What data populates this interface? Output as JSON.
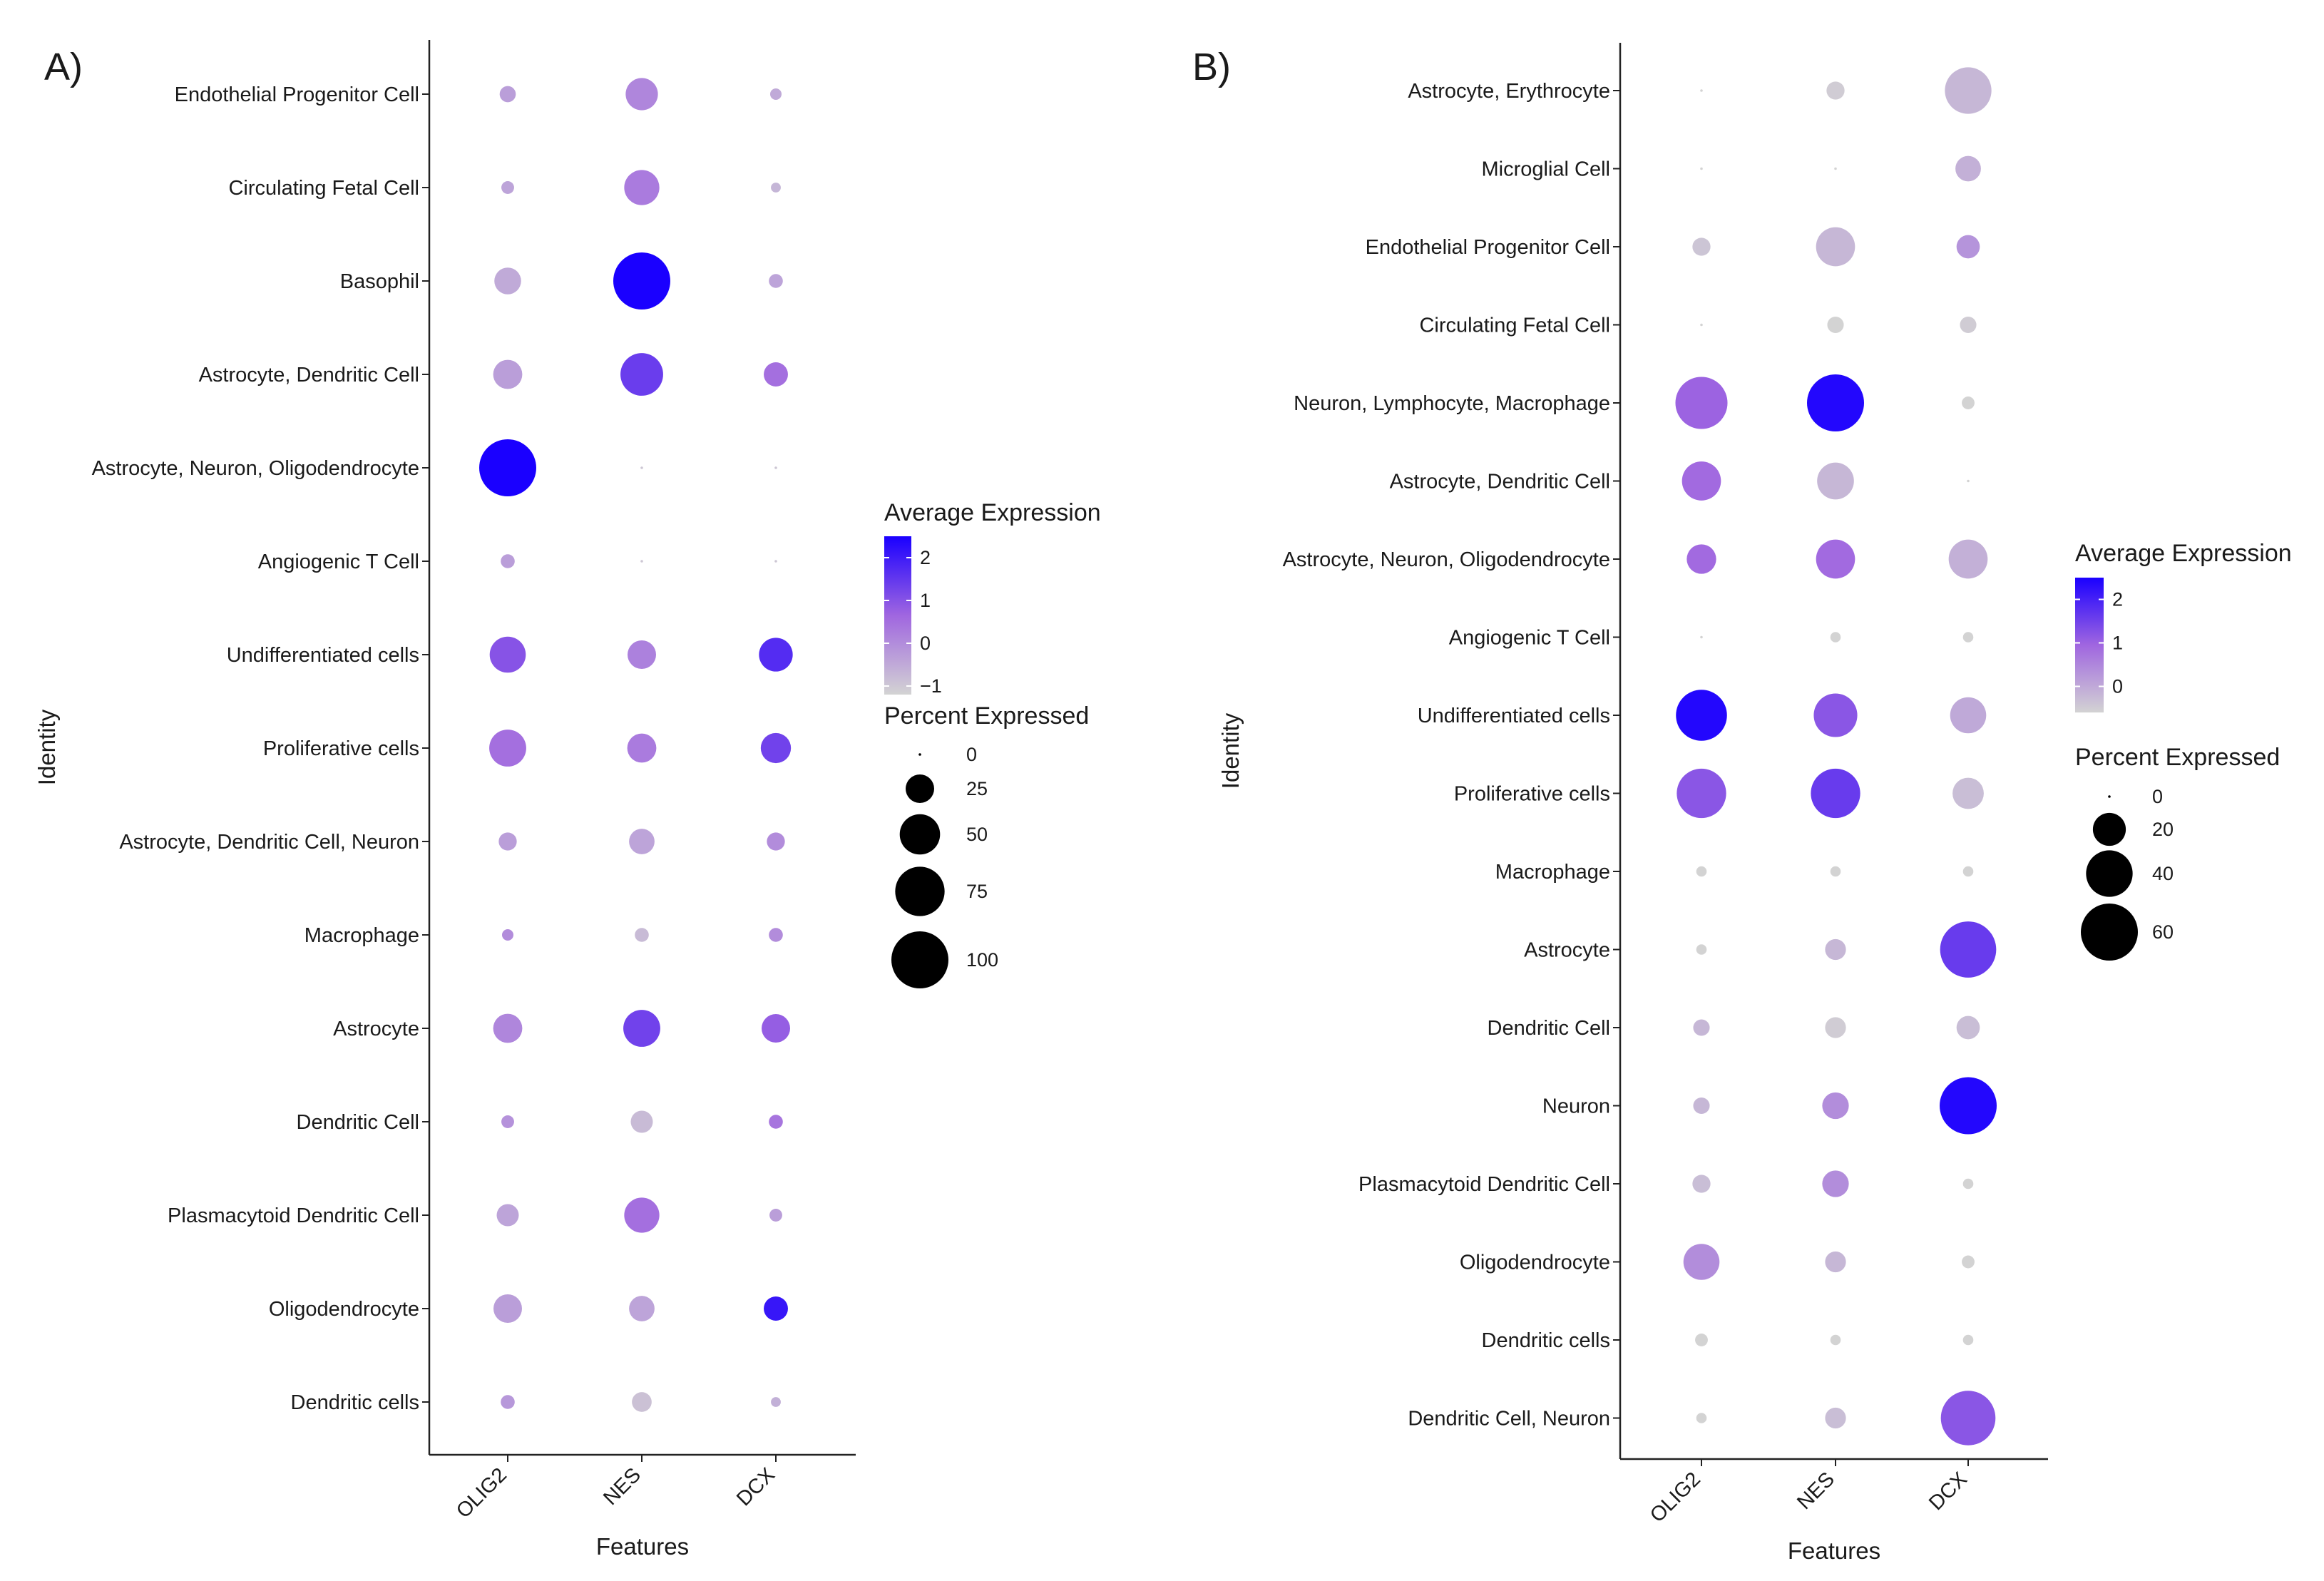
{
  "figure": {
    "panels": [
      {
        "letter": "A)"
      },
      {
        "letter": "B)"
      }
    ]
  },
  "chart_data": [
    {
      "type": "scatter",
      "subtype": "dot_plot",
      "panel": "A)",
      "xlabel": "Features",
      "ylabel": "Identity",
      "features": [
        "OLIG2",
        "NES",
        "DCX"
      ],
      "identities": [
        "Endothelial Progenitor Cell",
        "Circulating Fetal Cell",
        "Basophil",
        "Astrocyte, Dendritic Cell",
        "Astrocyte, Neuron, Oligodendrocyte",
        "Angiogenic T Cell",
        "Undifferentiated cells",
        "Proliferative cells",
        "Astrocyte, Dendritic Cell, Neuron",
        "Macrophage",
        "Astrocyte",
        "Dendritic Cell",
        "Plasmacytoid Dendritic Cell",
        "Oligodendrocyte",
        "Dendritic cells"
      ],
      "percent_expressed": [
        [
          8,
          32,
          4
        ],
        [
          5,
          38,
          3
        ],
        [
          22,
          100,
          6
        ],
        [
          26,
          56,
          18
        ],
        [
          100,
          0,
          0
        ],
        [
          6,
          0,
          0
        ],
        [
          40,
          25,
          35
        ],
        [
          42,
          26,
          28
        ],
        [
          10,
          20,
          10
        ],
        [
          4,
          6,
          6
        ],
        [
          26,
          42,
          25
        ],
        [
          5,
          15,
          6
        ],
        [
          15,
          38,
          5
        ],
        [
          25,
          20,
          18
        ],
        [
          6,
          12,
          3
        ]
      ],
      "average_expression": [
        [
          -0.3,
          0.1,
          -0.5
        ],
        [
          -0.4,
          0.3,
          -0.7
        ],
        [
          -0.5,
          2.5,
          -0.4
        ],
        [
          -0.3,
          1.4,
          0.5
        ],
        [
          2.5,
          -1.0,
          -1.0
        ],
        [
          -0.3,
          -1.0,
          -1.0
        ],
        [
          1.0,
          0.2,
          1.7
        ],
        [
          0.5,
          0.3,
          1.3
        ],
        [
          -0.3,
          -0.4,
          0.0
        ],
        [
          0.0,
          -0.8,
          0.0
        ],
        [
          0.1,
          1.3,
          0.8
        ],
        [
          -0.1,
          -0.8,
          0.4
        ],
        [
          -0.4,
          0.5,
          -0.3
        ],
        [
          -0.3,
          -0.4,
          2.1
        ],
        [
          -0.2,
          -0.9,
          -0.6
        ]
      ],
      "legend": {
        "color_title": "Average Expression",
        "color_ticks": [
          "2",
          "1",
          "0",
          "−1"
        ],
        "color_range": [
          -1.2,
          2.5
        ],
        "size_title": "Percent Expressed",
        "size_ticks": [
          "0",
          "25",
          "50",
          "75",
          "100"
        ],
        "size_range": [
          0,
          100
        ],
        "position": "right"
      },
      "colors": {
        "low": "#d3d3d3",
        "mid": "#a066e0",
        "high": "#1a00ff"
      }
    },
    {
      "type": "scatter",
      "subtype": "dot_plot",
      "panel": "B)",
      "xlabel": "Features",
      "ylabel": "Identity",
      "features": [
        "OLIG2",
        "NES",
        "DCX"
      ],
      "identities": [
        "Astrocyte, Erythrocyte",
        "Microglial Cell",
        "Endothelial Progenitor Cell",
        "Circulating Fetal Cell",
        "Neuron, Lymphocyte, Macrophage",
        "Astrocyte, Dendritic Cell",
        "Astrocyte, Neuron, Oligodendrocyte",
        "Angiogenic T Cell",
        "Undifferentiated cells",
        "Proliferative cells",
        "Macrophage",
        "Astrocyte",
        "Dendritic Cell",
        "Neuron",
        "Plasmacytoid Dendritic Cell",
        "Oligodendrocyte",
        "Dendritic cells",
        "Dendritic Cell, Neuron"
      ],
      "percent_expressed": [
        [
          0,
          6,
          40
        ],
        [
          0,
          0,
          12
        ],
        [
          6,
          28,
          10
        ],
        [
          0,
          5,
          5
        ],
        [
          50,
          60,
          3
        ],
        [
          28,
          25,
          0
        ],
        [
          16,
          28,
          28
        ],
        [
          0,
          2,
          2
        ],
        [
          48,
          35,
          24
        ],
        [
          45,
          45,
          18
        ],
        [
          2,
          2,
          2
        ],
        [
          2,
          8,
          58
        ],
        [
          5,
          8,
          10
        ],
        [
          5,
          13,
          60
        ],
        [
          6,
          13,
          2
        ],
        [
          24,
          8,
          3
        ],
        [
          3,
          2,
          2
        ],
        [
          2,
          8,
          55
        ]
      ],
      "average_expression": [
        [
          -1.0,
          -0.5,
          -0.2
        ],
        [
          -1.0,
          -1.0,
          -0.1
        ],
        [
          -0.4,
          -0.2,
          0.3
        ],
        [
          -1.0,
          -0.6,
          -0.5
        ],
        [
          1.0,
          2.4,
          -0.6
        ],
        [
          0.9,
          -0.2,
          -1.0
        ],
        [
          0.9,
          0.9,
          -0.1
        ],
        [
          -1.0,
          -0.6,
          -0.6
        ],
        [
          2.4,
          1.2,
          0.0
        ],
        [
          1.2,
          1.6,
          -0.3
        ],
        [
          -0.6,
          -0.6,
          -0.6
        ],
        [
          -0.6,
          -0.2,
          1.6
        ],
        [
          -0.2,
          -0.5,
          -0.3
        ],
        [
          -0.2,
          0.4,
          2.4
        ],
        [
          -0.3,
          0.4,
          -0.6
        ],
        [
          0.4,
          -0.2,
          -0.6
        ],
        [
          -0.6,
          -0.6,
          -0.6
        ],
        [
          -0.6,
          -0.3,
          1.2
        ]
      ],
      "legend": {
        "color_title": "Average Expression",
        "color_ticks": [
          "2",
          "1",
          "0"
        ],
        "color_range": [
          -0.6,
          2.5
        ],
        "size_title": "Percent Expressed",
        "size_ticks": [
          "0",
          "20",
          "40",
          "60"
        ],
        "size_range": [
          0,
          60
        ],
        "position": "right"
      },
      "colors": {
        "low": "#d3d3d3",
        "mid": "#a066e0",
        "high": "#1a00ff"
      }
    }
  ]
}
